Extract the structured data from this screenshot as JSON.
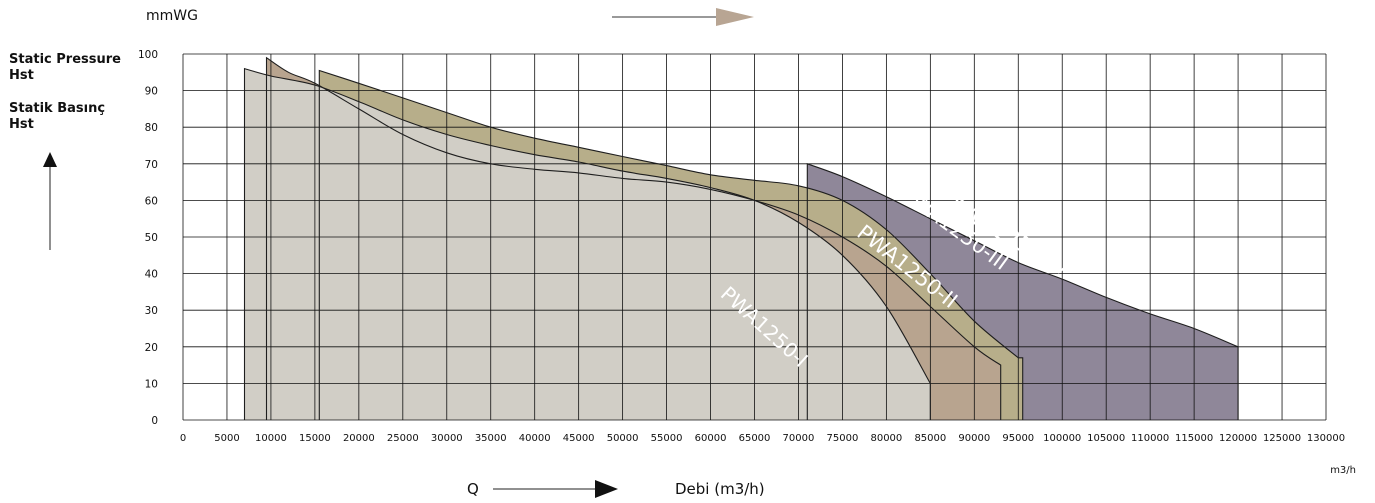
{
  "chart_data": {
    "type": "area",
    "y_unit_label": "mmWG",
    "y_axis_title_lines": [
      "Static Pressure",
      "Hst",
      "Statik Basınç",
      "Hst"
    ],
    "x_axis_symbol": "Q",
    "x_axis_title": "Debi (m3/h)",
    "x_unit_label": "m3/h",
    "xlim": [
      0,
      130000
    ],
    "ylim": [
      0,
      100
    ],
    "x_ticks": [
      0,
      5000,
      10000,
      15000,
      20000,
      25000,
      30000,
      35000,
      40000,
      45000,
      50000,
      55000,
      60000,
      65000,
      70000,
      75000,
      80000,
      85000,
      90000,
      95000,
      100000,
      105000,
      110000,
      115000,
      120000,
      125000,
      130000
    ],
    "y_ticks": [
      0,
      10,
      20,
      30,
      40,
      50,
      60,
      70,
      80,
      90,
      100
    ],
    "grid": true,
    "series": [
      {
        "name": "PWA1250-I",
        "color": "#d1cec6",
        "points": [
          [
            7000,
            96
          ],
          [
            10000,
            94
          ],
          [
            15000,
            91.5
          ],
          [
            20000,
            87
          ],
          [
            25000,
            82
          ],
          [
            30000,
            78
          ],
          [
            35000,
            75
          ],
          [
            40000,
            72.5
          ],
          [
            45000,
            70.5
          ],
          [
            50000,
            68
          ],
          [
            55000,
            66
          ],
          [
            60000,
            63.5
          ],
          [
            65000,
            60
          ],
          [
            70000,
            54
          ],
          [
            75000,
            45
          ],
          [
            80000,
            31
          ],
          [
            85000,
            10
          ]
        ],
        "x_end": 85000
      },
      {
        "name": "PWA1250-II",
        "color": "#b8a48f",
        "points": [
          [
            9500,
            99
          ],
          [
            12000,
            95
          ],
          [
            15000,
            92
          ],
          [
            20000,
            85
          ],
          [
            25000,
            78
          ],
          [
            30000,
            73
          ],
          [
            35000,
            70
          ],
          [
            40000,
            68.5
          ],
          [
            45000,
            67.5
          ],
          [
            50000,
            66
          ],
          [
            55000,
            65
          ],
          [
            60000,
            63
          ],
          [
            65000,
            60
          ],
          [
            70000,
            56
          ],
          [
            75000,
            50
          ],
          [
            80000,
            42
          ],
          [
            85000,
            31
          ],
          [
            90000,
            20
          ],
          [
            93000,
            15
          ]
        ],
        "x_end": 93000
      },
      {
        "name": "PWA1250-III",
        "color": "#b7ae8a",
        "points": [
          [
            15500,
            95.5
          ],
          [
            20000,
            92
          ],
          [
            25000,
            88
          ],
          [
            30000,
            84
          ],
          [
            35000,
            80
          ],
          [
            40000,
            77
          ],
          [
            45000,
            74.5
          ],
          [
            50000,
            72
          ],
          [
            55000,
            69.5
          ],
          [
            60000,
            67
          ],
          [
            65000,
            65.5
          ],
          [
            70000,
            64
          ],
          [
            75000,
            60
          ],
          [
            80000,
            52
          ],
          [
            85000,
            40
          ],
          [
            90000,
            27
          ],
          [
            95000,
            17
          ]
        ],
        "x_end": 95500
      },
      {
        "name": "PWA1250-IV",
        "color": "#8f8799",
        "points": [
          [
            71000,
            70
          ],
          [
            75000,
            66.5
          ],
          [
            80000,
            61
          ],
          [
            85000,
            55
          ],
          [
            90000,
            49
          ],
          [
            95000,
            43
          ],
          [
            100000,
            38.5
          ],
          [
            105000,
            33.5
          ],
          [
            110000,
            29
          ],
          [
            115000,
            25
          ],
          [
            120000,
            20
          ]
        ],
        "x_end": 120000
      }
    ],
    "curve_labels": [
      {
        "series": "PWA1250-I",
        "text": "PWA1250-I"
      },
      {
        "series": "PWA1250-II",
        "text": "PWA1250-II"
      },
      {
        "series": "PWA1250-III",
        "text": "PWA1250-III"
      },
      {
        "series": "PWA1250-IV",
        "text": "PWA1250-IV"
      }
    ]
  }
}
